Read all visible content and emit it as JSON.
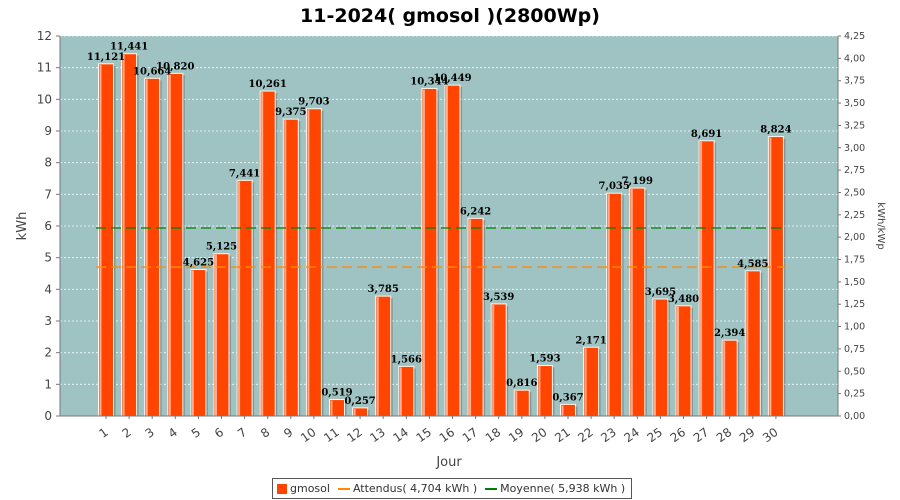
{
  "chart_data": {
    "type": "bar",
    "title": "11-2024( gmosol )(2800Wp)",
    "xlabel": "Jour",
    "ylabel": "kWh",
    "y2label": "kWh/kWp",
    "ylim": [
      0,
      12
    ],
    "y2lim": [
      0,
      4.25
    ],
    "yticks": [
      "0",
      "1",
      "2",
      "3",
      "4",
      "5",
      "6",
      "7",
      "8",
      "9",
      "10",
      "11",
      "12"
    ],
    "y2ticks": [
      "0,00",
      "0,25",
      "0,50",
      "0,75",
      "1,00",
      "1,25",
      "1,50",
      "1,75",
      "2,00",
      "2,25",
      "2,50",
      "2,75",
      "3,00",
      "3,25",
      "3,50",
      "3,75",
      "4,00",
      "4,25"
    ],
    "categories": [
      "1",
      "2",
      "3",
      "4",
      "5",
      "6",
      "7",
      "8",
      "9",
      "10",
      "11",
      "12",
      "13",
      "14",
      "15",
      "16",
      "17",
      "18",
      "19",
      "20",
      "21",
      "22",
      "23",
      "24",
      "25",
      "26",
      "27",
      "28",
      "29",
      "30"
    ],
    "series": [
      {
        "name": "gmosol",
        "color": "#ff4500",
        "values": [
          11.121,
          11.441,
          10.664,
          10.82,
          4.625,
          5.125,
          7.441,
          10.261,
          9.375,
          9.703,
          0.519,
          0.257,
          3.785,
          1.566,
          10.344,
          10.449,
          6.242,
          3.539,
          0.816,
          1.593,
          0.367,
          2.171,
          7.035,
          7.199,
          3.695,
          3.48,
          8.691,
          2.394,
          4.585,
          8.824
        ],
        "labels": [
          "11,121",
          "11,441",
          "10,664",
          "10,820",
          "4,625",
          "5,125",
          "7,441",
          "10,261",
          "9,375",
          "9,703",
          "0,519",
          "0,257",
          "3,785",
          "1,566",
          "10,344",
          "10,449",
          "6,242",
          "3,539",
          "0,816",
          "1,593",
          "0,367",
          "2,171",
          "7,035",
          "7,199",
          "3,695",
          "3,480",
          "8,691",
          "2,394",
          "4,585",
          "8,824"
        ]
      }
    ],
    "reference_lines": [
      {
        "name": "Attendus",
        "legend": "Attendus( 4,704 kWh )",
        "color": "#ff8c00",
        "segments": [
          {
            "from": "1",
            "to": "10",
            "value": 4.704
          },
          {
            "from": "11",
            "to": "30",
            "value": 4.704
          }
        ]
      },
      {
        "name": "Moyenne",
        "legend": "Moyenne( 5,938 kWh )",
        "color": "#008000",
        "segments": [
          {
            "from": "1",
            "to": "30",
            "value": 5.938
          }
        ]
      }
    ],
    "plot_background": "#9fc3c3",
    "grid": true,
    "legend_position": "bottom"
  }
}
